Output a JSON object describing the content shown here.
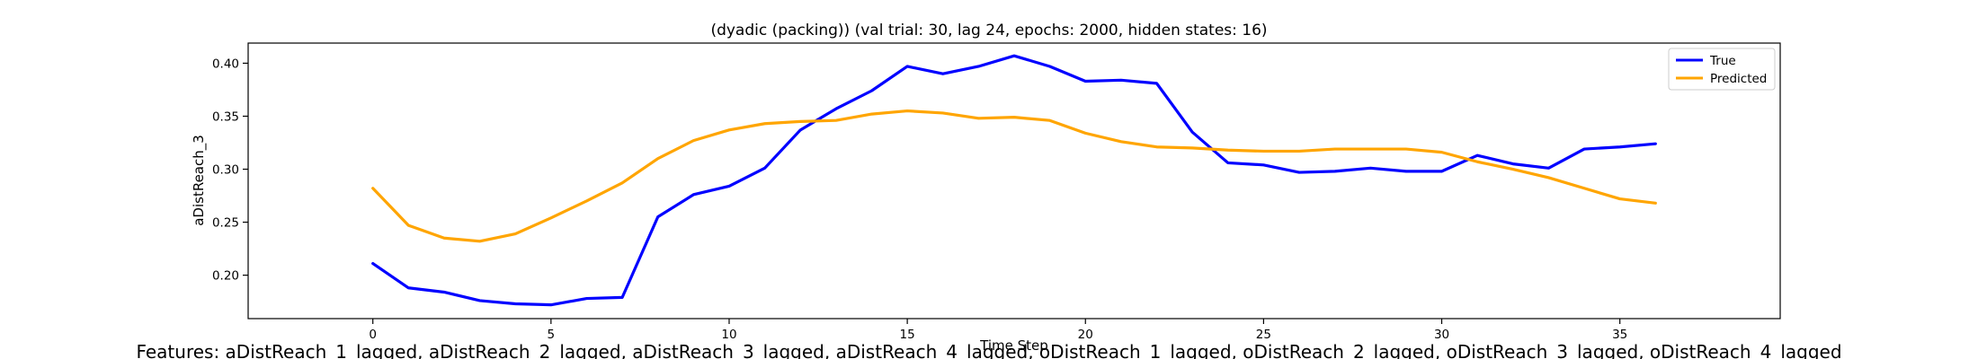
{
  "chart_data": {
    "type": "line",
    "title": "(dyadic (packing)) (val trial: 30, lag 24, epochs: 2000, hidden states: 16)",
    "xlabel": "Time Step",
    "ylabel": "aDistReach_3",
    "xlim": [
      -3.5,
      39.5
    ],
    "ylim": [
      0.159,
      0.419
    ],
    "xticks": [
      0,
      5,
      10,
      15,
      20,
      25,
      30,
      35
    ],
    "xtick_labels": [
      "0",
      "5",
      "10",
      "15",
      "20",
      "25",
      "30",
      "35"
    ],
    "yticks": [
      0.2,
      0.25,
      0.3,
      0.35,
      0.4
    ],
    "ytick_labels": [
      "0.20",
      "0.25",
      "0.30",
      "0.35",
      "0.40"
    ],
    "grid": false,
    "legend_position": "top-right",
    "x": [
      0,
      1,
      2,
      3,
      4,
      5,
      6,
      7,
      8,
      9,
      10,
      11,
      12,
      13,
      14,
      15,
      16,
      17,
      18,
      19,
      20,
      21,
      22,
      23,
      24,
      25,
      26,
      27,
      28,
      29,
      30,
      31,
      32,
      33,
      34,
      35,
      36
    ],
    "series": [
      {
        "name": "True",
        "color": "#0000ff",
        "values": [
          0.211,
          0.188,
          0.184,
          0.176,
          0.173,
          0.172,
          0.178,
          0.179,
          0.255,
          0.276,
          0.284,
          0.301,
          0.337,
          0.357,
          0.374,
          0.397,
          0.39,
          0.397,
          0.407,
          0.397,
          0.383,
          0.384,
          0.381,
          0.335,
          0.306,
          0.304,
          0.297,
          0.298,
          0.301,
          0.298,
          0.298,
          0.313,
          0.305,
          0.301,
          0.319,
          0.321,
          0.324
        ]
      },
      {
        "name": "Predicted",
        "color": "#ffa500",
        "values": [
          0.282,
          0.247,
          0.235,
          0.232,
          0.239,
          0.254,
          0.27,
          0.287,
          0.31,
          0.327,
          0.337,
          0.343,
          0.345,
          0.346,
          0.352,
          0.355,
          0.353,
          0.348,
          0.349,
          0.346,
          0.334,
          0.326,
          0.321,
          0.32,
          0.318,
          0.317,
          0.317,
          0.319,
          0.319,
          0.319,
          0.316,
          0.307,
          0.3,
          0.292,
          0.282,
          0.272,
          0.268
        ]
      }
    ]
  },
  "footer": {
    "features": "Features: aDistReach_1_lagged, aDistReach_2_lagged, aDistReach_3_lagged, aDistReach_4_lagged, oDistReach_1_lagged, oDistReach_2_lagged, oDistReach_3_lagged, oDistReach_4_lagged"
  }
}
